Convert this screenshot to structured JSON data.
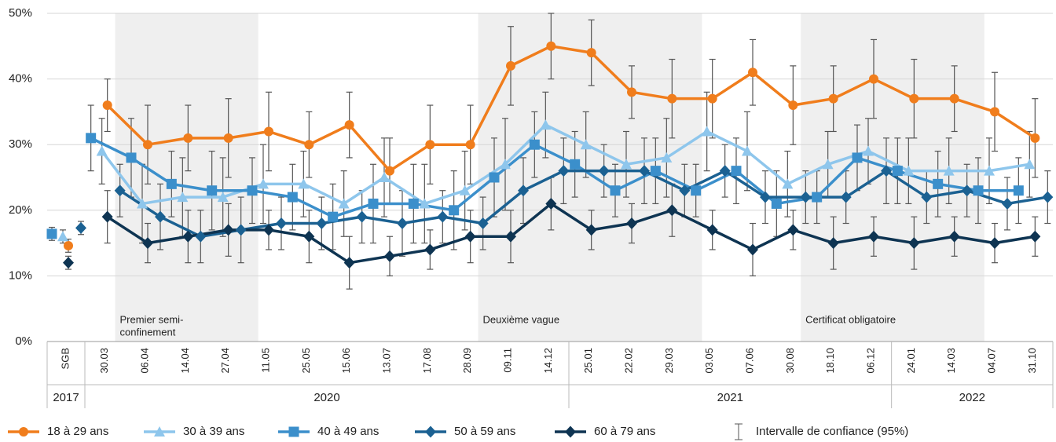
{
  "chart_data": {
    "type": "line",
    "categories": [
      "SGB",
      "30.03",
      "06.04",
      "14.04",
      "27.04",
      "11.05",
      "25.05",
      "15.06",
      "13.07",
      "17.08",
      "28.09",
      "09.11",
      "14.12",
      "25.01",
      "22.02",
      "29.03",
      "03.05",
      "07.06",
      "30.08",
      "18.10",
      "06.12",
      "24.01",
      "14.03",
      "04.07",
      "31.10"
    ],
    "years": [
      {
        "label": "2017",
        "from": "SGB",
        "to": "SGB"
      },
      {
        "label": "2020",
        "from": "30.03",
        "to": "14.12"
      },
      {
        "label": "2021",
        "from": "25.01",
        "to": "06.12"
      },
      {
        "label": "2022",
        "from": "24.01",
        "to": "31.10"
      }
    ],
    "periods": [
      {
        "label": [
          "Premier semi-",
          "confinement"
        ],
        "from": "30.03",
        "to": "27.04"
      },
      {
        "label": [
          "Deuxième vague"
        ],
        "from": "28.09",
        "to": "29.03"
      },
      {
        "label": [
          "Certificat obligatoire"
        ],
        "from": "30.08",
        "to": "14.03"
      }
    ],
    "ylim": [
      0,
      50
    ],
    "yticks": [
      {
        "value": 0,
        "label": "0%"
      },
      {
        "value": 10,
        "label": "10%"
      },
      {
        "value": 20,
        "label": "20%"
      },
      {
        "value": 30,
        "label": "30%"
      },
      {
        "value": 40,
        "label": "40%"
      },
      {
        "value": 50,
        "label": "50%"
      }
    ],
    "grid": true,
    "error_label": "Intervalle de confiance (95%)",
    "series": [
      {
        "name": "18 à 29 ans",
        "color": "#f07d1c",
        "marker": "circle",
        "values": [
          14.6,
          36,
          30,
          31,
          31,
          32,
          30,
          33,
          26,
          30,
          30,
          42,
          45,
          44,
          38,
          37,
          37,
          41,
          36,
          37,
          40,
          37,
          37,
          35,
          31
        ],
        "errors": [
          1,
          4,
          6,
          5,
          6,
          6,
          5,
          5,
          5,
          6,
          6,
          6,
          5,
          5,
          4,
          6,
          6,
          5,
          6,
          5,
          6,
          6,
          5,
          6,
          6
        ]
      },
      {
        "name": "30 à 39 ans",
        "color": "#8ec6ec",
        "marker": "triangle",
        "values": [
          16,
          29,
          21,
          22,
          22,
          24,
          24,
          21,
          25,
          21,
          23,
          27,
          33,
          30,
          27,
          28,
          32,
          29,
          24,
          27,
          29,
          26,
          26,
          26,
          27
        ],
        "errors": [
          1,
          5,
          6,
          6,
          6,
          6,
          5,
          5,
          6,
          6,
          6,
          7,
          5,
          5,
          5,
          6,
          6,
          6,
          5,
          5,
          5,
          5,
          5,
          5,
          5
        ]
      },
      {
        "name": "40 à 49 ans",
        "color": "#3b8fcb",
        "marker": "square",
        "values": [
          16.4,
          31,
          28,
          24,
          23,
          23,
          22,
          19,
          21,
          21,
          20,
          25,
          30,
          27,
          23,
          26,
          23,
          26,
          21,
          22,
          28,
          26,
          24,
          23,
          23
        ],
        "errors": [
          1,
          5,
          6,
          5,
          6,
          5,
          5,
          5,
          6,
          6,
          6,
          6,
          5,
          5,
          4,
          5,
          4,
          5,
          5,
          4,
          5,
          5,
          5,
          5,
          5
        ]
      },
      {
        "name": "50 à 59 ans",
        "color": "#1b6192",
        "marker": "diamond",
        "values": [
          17.3,
          23,
          19,
          16,
          17,
          18,
          18,
          19,
          18,
          19,
          18,
          23,
          26,
          26,
          26,
          23,
          26,
          22,
          22,
          22,
          26,
          22,
          23,
          21,
          22
        ],
        "errors": [
          1,
          4,
          5,
          4,
          5,
          4,
          4,
          4,
          5,
          4,
          4,
          5,
          5,
          4,
          5,
          4,
          4,
          4,
          4,
          4,
          5,
          4,
          4,
          4,
          4
        ]
      },
      {
        "name": "60 à 79 ans",
        "color": "#0e3452",
        "marker": "diamond",
        "values": [
          12,
          19,
          15,
          16,
          17,
          17,
          16,
          12,
          13,
          14,
          16,
          16,
          21,
          17,
          18,
          20,
          17,
          14,
          17,
          15,
          16,
          15,
          16,
          15,
          16
        ],
        "errors": [
          1,
          4,
          3,
          4,
          4,
          3,
          4,
          4,
          3,
          3,
          4,
          4,
          4,
          3,
          3,
          4,
          3,
          4,
          3,
          4,
          3,
          4,
          3,
          3,
          3
        ]
      }
    ]
  }
}
